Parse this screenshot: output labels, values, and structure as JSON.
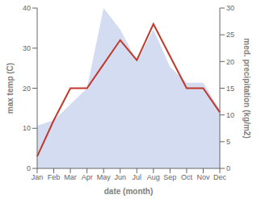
{
  "chart_data": {
    "type": "line",
    "xlabel": "date (month)",
    "ylabel": "max temp (C)",
    "y2label": "med. precipitation (kg/m2)",
    "categories": [
      "Jan",
      "Feb",
      "Mar",
      "Apr",
      "May",
      "Jun",
      "Jul",
      "Aug",
      "Sep",
      "Oct",
      "Nov",
      "Dec"
    ],
    "series": [
      {
        "type": "area",
        "color": "#b8c4e8",
        "axis": "y2",
        "values": [
          8,
          9,
          12,
          15,
          30,
          26,
          20,
          26,
          19,
          16,
          16,
          11
        ]
      },
      {
        "type": "line",
        "color": "#c0392b",
        "values": [
          3,
          12,
          20,
          20,
          26,
          32,
          27,
          36,
          28,
          20,
          20,
          14
        ]
      }
    ],
    "ylim": [
      0,
      40
    ],
    "yticks": [
      0,
      10,
      20,
      30,
      40
    ],
    "y2lim": [
      0,
      30
    ],
    "y2ticks": [
      0,
      5,
      10,
      15,
      20,
      25,
      30
    ],
    "grid": false
  }
}
